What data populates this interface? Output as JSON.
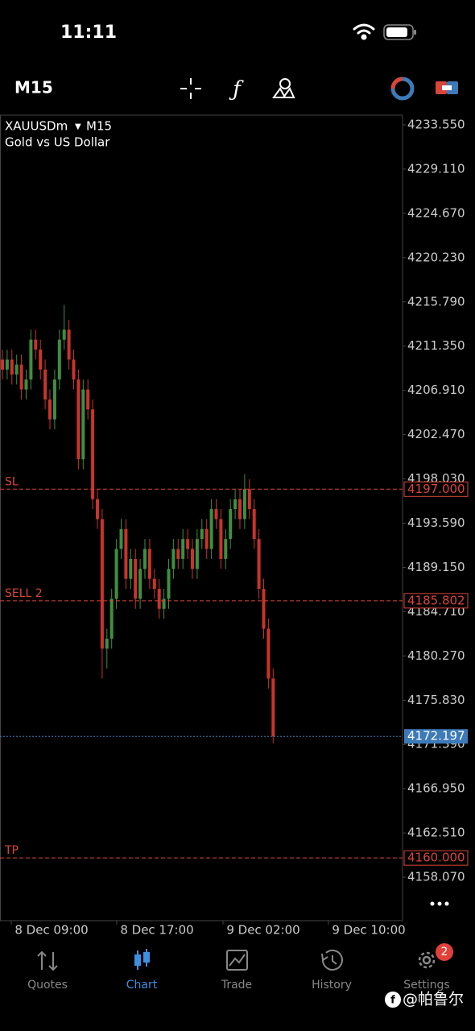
{
  "status_bar": {
    "time": "11:11"
  },
  "toolbar": {
    "timeframe": "M15"
  },
  "chart_data": {
    "type": "candlestick",
    "symbol": "XAUUSDm",
    "timeframe": "M15",
    "description": "Gold vs US Dollar",
    "up_color": "#3f8f3f",
    "down_color": "#c8342b",
    "open": [
      4210,
      4209,
      4210,
      4208.5,
      4209.5,
      4207,
      4208,
      4212,
      4211,
      4209,
      4206,
      4204,
      4208,
      4212,
      4213,
      4210,
      4208,
      4200,
      4207,
      4205,
      4196,
      4194,
      4181,
      4182,
      4186,
      4191,
      4193,
      4188,
      4190,
      4186,
      4189,
      4191,
      4188,
      4187,
      4185,
      4186,
      4189,
      4191,
      4190,
      4192,
      4191,
      4189,
      4192,
      4193,
      4191,
      4195,
      4194,
      4190,
      4192,
      4195,
      4196,
      4194,
      4197,
      4195,
      4192,
      4187,
      4183,
      4178
    ],
    "high": [
      4211,
      4211,
      4211,
      4210.5,
      4210.5,
      4209,
      4213,
      4213,
      4212,
      4210,
      4207,
      4209,
      4213,
      4215.5,
      4214,
      4211,
      4209,
      4208,
      4208,
      4206,
      4197,
      4195,
      4183,
      4187,
      4192,
      4194,
      4194,
      4191,
      4191,
      4190,
      4192,
      4192,
      4189,
      4188,
      4187,
      4190,
      4192,
      4192,
      4193,
      4193,
      4192,
      4193,
      4194,
      4194,
      4196,
      4196,
      4195,
      4193,
      4196,
      4197,
      4197,
      4198.5,
      4198,
      4196,
      4193,
      4188,
      4184,
      4179
    ],
    "low": [
      4208,
      4208,
      4207.5,
      4207.5,
      4206,
      4206,
      4207,
      4210,
      4208,
      4205,
      4203,
      4203,
      4207,
      4211,
      4209,
      4207,
      4199,
      4199,
      4204,
      4195,
      4193,
      4178,
      4179,
      4181,
      4185,
      4190,
      4187,
      4187,
      4185,
      4185,
      4188,
      4187,
      4186,
      4184,
      4184,
      4185,
      4188,
      4189,
      4189,
      4190,
      4188,
      4188,
      4191,
      4190,
      4190,
      4193,
      4189,
      4189,
      4191,
      4194,
      4193,
      4193,
      4194,
      4191,
      4186,
      4182,
      4177,
      4171.5
    ],
    "close": [
      4209,
      4210,
      4208.5,
      4209.5,
      4207,
      4208,
      4212,
      4211,
      4209,
      4206,
      4204,
      4208,
      4212,
      4213,
      4210,
      4208,
      4200,
      4207,
      4205,
      4196,
      4194,
      4181,
      4182,
      4186,
      4191,
      4193,
      4188,
      4190,
      4186,
      4189,
      4191,
      4188,
      4187,
      4185,
      4186,
      4189,
      4191,
      4190,
      4192,
      4191,
      4189,
      4192,
      4193,
      4191,
      4195,
      4194,
      4190,
      4192,
      4195,
      4196,
      4194,
      4197,
      4195,
      4192,
      4187,
      4183,
      4178,
      4172.197
    ],
    "ylim": [
      4153.71,
      4234.52
    ],
    "yticks": [
      {
        "value": 4233.55,
        "label": "4233.550"
      },
      {
        "value": 4229.11,
        "label": "4229.110"
      },
      {
        "value": 4224.67,
        "label": "4224.670"
      },
      {
        "value": 4220.23,
        "label": "4220.230"
      },
      {
        "value": 4215.79,
        "label": "4215.790"
      },
      {
        "value": 4211.35,
        "label": "4211.350"
      },
      {
        "value": 4206.91,
        "label": "4206.910"
      },
      {
        "value": 4202.47,
        "label": "4202.470"
      },
      {
        "value": 4198.03,
        "label": "4198.030"
      },
      {
        "value": 4193.59,
        "label": "4193.590"
      },
      {
        "value": 4189.15,
        "label": "4189.150"
      },
      {
        "value": 4184.71,
        "label": "4184.710"
      },
      {
        "value": 4180.27,
        "label": "4180.270"
      },
      {
        "value": 4175.83,
        "label": "4175.830"
      },
      {
        "value": 4171.39,
        "label": "4171.390"
      },
      {
        "value": 4166.95,
        "label": "4166.950"
      },
      {
        "value": 4162.51,
        "label": "4162.510"
      },
      {
        "value": 4158.07,
        "label": "4158.070"
      }
    ],
    "x_labels": [
      "8 Dec 09:00",
      "8 Dec 17:00",
      "9 Dec 02:00",
      "9 Dec 10:00"
    ],
    "levels": [
      {
        "name": "SL",
        "price": {
          "value": 4197,
          "label": "4197.000"
        },
        "color": "#d9453b"
      },
      {
        "name": "SELL 2",
        "price": 4185.802,
        "color": "#d9453b"
      },
      {
        "name": "TP",
        "price": {
          "value": 4160,
          "label": "4160.000"
        },
        "color": "#d9453b"
      }
    ],
    "current_price": {
      "price": 4172.197,
      "color": "#3d7ab8"
    }
  },
  "tab_bar": {
    "tabs": [
      "Quotes",
      "Chart",
      "Trade",
      "History",
      "Settings"
    ],
    "active": 1,
    "settings_badge": "2"
  },
  "watermark": "@帕鲁尔"
}
